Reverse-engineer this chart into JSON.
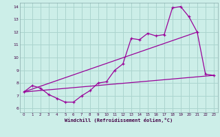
{
  "background_color": "#cceee8",
  "grid_color": "#aad4ce",
  "line_color": "#990099",
  "xlabel": "Windchill (Refroidissement éolien,°C)",
  "xlim": [
    -0.5,
    23.5
  ],
  "ylim": [
    5.7,
    14.3
  ],
  "xticks": [
    0,
    1,
    2,
    3,
    4,
    5,
    6,
    7,
    8,
    9,
    10,
    11,
    12,
    13,
    14,
    15,
    16,
    17,
    18,
    19,
    20,
    21,
    22,
    23
  ],
  "yticks": [
    6,
    7,
    8,
    9,
    10,
    11,
    12,
    13,
    14
  ],
  "line1_x": [
    0,
    1,
    2,
    3,
    4,
    5,
    6,
    7,
    8,
    9,
    10,
    11,
    12,
    13,
    14,
    15,
    16,
    17,
    18,
    19,
    20,
    21,
    22,
    23
  ],
  "line1_y": [
    7.3,
    7.8,
    7.6,
    7.1,
    6.8,
    6.5,
    6.5,
    7.0,
    7.4,
    8.0,
    8.1,
    9.0,
    9.5,
    11.5,
    11.4,
    11.9,
    11.7,
    11.8,
    13.9,
    14.0,
    13.2,
    12.0,
    8.7,
    8.6
  ],
  "line2_x": [
    0,
    23
  ],
  "line2_y": [
    7.3,
    8.6
  ],
  "line3_x": [
    0,
    21
  ],
  "line3_y": [
    7.3,
    12.0
  ]
}
